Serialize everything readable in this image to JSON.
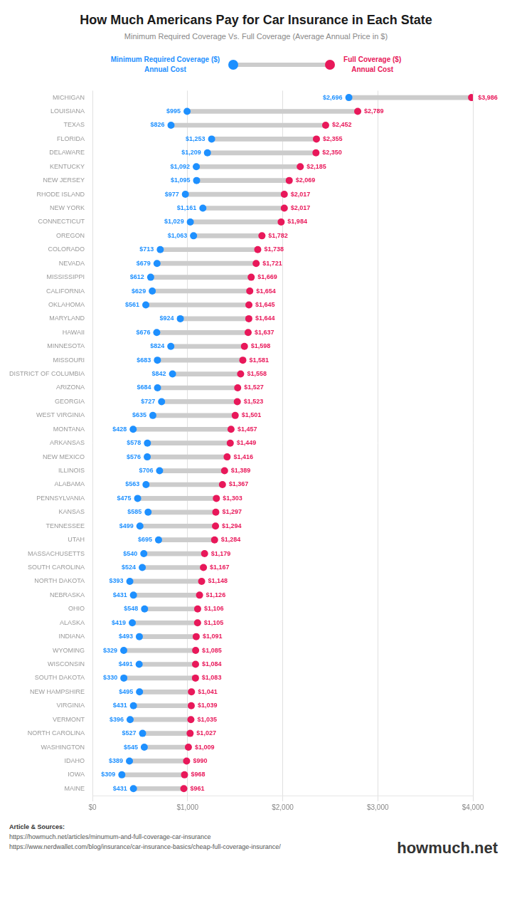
{
  "chart_data": {
    "type": "dumbbell",
    "orientation": "horizontal",
    "title": "How Much Americans Pay for Car Insurance in Each State",
    "subtitle": "Minimum Required Coverage Vs. Full Coverage (Average Annual Price in $)",
    "categories": [
      "MICHIGAN",
      "LOUISIANA",
      "TEXAS",
      "FLORIDA",
      "DELAWARE",
      "KENTUCKY",
      "NEW JERSEY",
      "RHODE ISLAND",
      "NEW YORK",
      "CONNECTICUT",
      "OREGON",
      "COLORADO",
      "NEVADA",
      "MISSISSIPPI",
      "CALIFORNIA",
      "OKLAHOMA",
      "MARYLAND",
      "HAWAII",
      "MINNESOTA",
      "MISSOURI",
      "DISTRICT OF COLUMBIA",
      "ARIZONA",
      "GEORGIA",
      "WEST VIRGINIA",
      "MONTANA",
      "ARKANSAS",
      "NEW MEXICO",
      "ILLINOIS",
      "ALABAMA",
      "PENNSYLVANIA",
      "KANSAS",
      "TENNESSEE",
      "UTAH",
      "MASSACHUSETTS",
      "SOUTH CAROLINA",
      "NORTH DAKOTA",
      "NEBRASKA",
      "OHIO",
      "ALASKA",
      "INDIANA",
      "WYOMING",
      "WISCONSIN",
      "SOUTH DAKOTA",
      "NEW HAMPSHIRE",
      "VIRGINIA",
      "VERMONT",
      "NORTH CAROLINA",
      "WASHINGTON",
      "IDAHO",
      "IOWA",
      "MAINE"
    ],
    "series": [
      {
        "name": "Minimum Required Coverage ($)\nAnnual Cost",
        "color": "#1E90FF",
        "values": [
          2696,
          995,
          826,
          1253,
          1209,
          1092,
          1095,
          977,
          1161,
          1029,
          1063,
          713,
          679,
          612,
          629,
          561,
          924,
          676,
          824,
          683,
          842,
          684,
          727,
          635,
          428,
          578,
          576,
          706,
          563,
          475,
          585,
          499,
          695,
          540,
          524,
          393,
          431,
          548,
          419,
          493,
          329,
          491,
          330,
          495,
          431,
          396,
          527,
          545,
          389,
          309,
          431
        ],
        "value_labels": [
          "$2,696",
          "$995",
          "$826",
          "$1,253",
          "$1,209",
          "$1,092",
          "$1,095",
          "$977",
          "$1,161",
          "$1,029",
          "$1,063",
          "$713",
          "$679",
          "$612",
          "$629",
          "$561",
          "$924",
          "$676",
          "$824",
          "$683",
          "$842",
          "$684",
          "$727",
          "$635",
          "$428",
          "$578",
          "$576",
          "$706",
          "$563",
          "$475",
          "$585",
          "$499",
          "$695",
          "$540",
          "$524",
          "$393",
          "$431",
          "$548",
          "$419",
          "$493",
          "$329",
          "$491",
          "$330",
          "$495",
          "$431",
          "$396",
          "$527",
          "$545",
          "$389",
          "$309",
          "$431"
        ]
      },
      {
        "name": "Full Coverage ($)\nAnnual Cost",
        "color": "#E8185A",
        "values": [
          3986,
          2789,
          2452,
          2355,
          2350,
          2185,
          2069,
          2017,
          2017,
          1984,
          1782,
          1738,
          1721,
          1669,
          1654,
          1645,
          1644,
          1637,
          1598,
          1581,
          1558,
          1527,
          1523,
          1501,
          1457,
          1449,
          1416,
          1389,
          1367,
          1303,
          1297,
          1294,
          1284,
          1179,
          1167,
          1148,
          1126,
          1106,
          1105,
          1091,
          1085,
          1084,
          1083,
          1041,
          1039,
          1035,
          1027,
          1009,
          990,
          968,
          961
        ],
        "value_labels": [
          "$3,986",
          "$2,789",
          "$2,452",
          "$2,355",
          "$2,350",
          "$2,185",
          "$2,069",
          "$2,017",
          "$2,017",
          "$1,984",
          "$1,782",
          "$1,738",
          "$1,721",
          "$1,669",
          "$1,654",
          "$1,645",
          "$1,644",
          "$1,637",
          "$1,598",
          "$1,581",
          "$1,558",
          "$1,527",
          "$1,523",
          "$1,501",
          "$1,457",
          "$1,449",
          "$1,416",
          "$1,389",
          "$1,367",
          "$1,303",
          "$1,297",
          "$1,294",
          "$1,284",
          "$1,179",
          "$1,167",
          "$1,148",
          "$1,126",
          "$1,106",
          "$1,105",
          "$1,091",
          "$1,085",
          "$1,084",
          "$1,083",
          "$1,041",
          "$1,039",
          "$1,035",
          "$1,027",
          "$1,009",
          "$990",
          "$968",
          "$961"
        ]
      }
    ],
    "color": "#CCCCCC",
    "xlim": [
      0,
      4000
    ],
    "xticks": [
      {
        "value": 0,
        "label": "$0"
      },
      {
        "value": 1000,
        "label": "$1,000"
      },
      {
        "value": 2000,
        "label": "$2,000"
      },
      {
        "value": 3000,
        "label": "$3,000"
      },
      {
        "value": 4000,
        "label": "$4,000"
      }
    ],
    "grid": true,
    "legend": "top",
    "data_labels": true,
    "annotations": [
      "Article & Sources:",
      "https://howmuch.net/articles/minumum-and-full-coverage-car-insurance",
      "https://www.nerdwallet.com/blog/insurance/car-insurance-basics/cheap-full-coverage-insurance/",
      "howmuch.net"
    ]
  }
}
